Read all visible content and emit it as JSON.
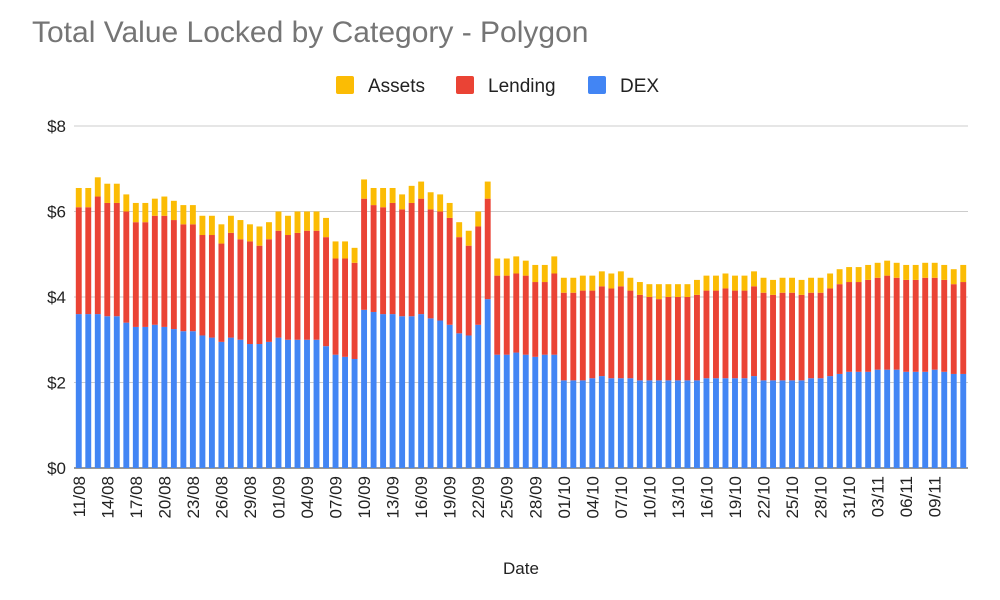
{
  "chart_data": {
    "type": "bar",
    "stacked": true,
    "title": "Total Value Locked by Category - Polygon",
    "xlabel": "Date",
    "ylabel": "",
    "ylim": [
      0,
      8
    ],
    "yticks": [
      "$0",
      "$2",
      "$4",
      "$6",
      "$8"
    ],
    "grid": true,
    "legend_position": "top",
    "categories": [
      "11/08",
      "12/08",
      "13/08",
      "14/08",
      "15/08",
      "16/08",
      "17/08",
      "18/08",
      "19/08",
      "20/08",
      "21/08",
      "22/08",
      "23/08",
      "24/08",
      "25/08",
      "26/08",
      "27/08",
      "28/08",
      "29/08",
      "30/08",
      "31/08",
      "01/09",
      "02/09",
      "03/09",
      "04/09",
      "05/09",
      "06/09",
      "07/09",
      "08/09",
      "09/09",
      "10/09",
      "11/09",
      "12/09",
      "13/09",
      "14/09",
      "15/09",
      "16/09",
      "17/09",
      "18/09",
      "19/09",
      "20/09",
      "21/09",
      "22/09",
      "23/09",
      "24/09",
      "25/09",
      "26/09",
      "27/09",
      "28/09",
      "29/09",
      "30/09",
      "01/10",
      "02/10",
      "03/10",
      "04/10",
      "05/10",
      "06/10",
      "07/10",
      "08/10",
      "09/10",
      "10/10",
      "11/10",
      "12/10",
      "13/10",
      "14/10",
      "15/10",
      "16/10",
      "17/10",
      "18/10",
      "19/10",
      "20/10",
      "21/10",
      "22/10",
      "23/10",
      "24/10",
      "25/10",
      "26/10",
      "27/10",
      "28/10",
      "29/10",
      "30/10",
      "31/10",
      "01/11",
      "02/11",
      "03/11",
      "04/11",
      "05/11",
      "06/11",
      "07/11",
      "08/11",
      "09/11",
      "10/11",
      "11/11",
      "12/11"
    ],
    "xtick_labels": [
      "11/08",
      "14/08",
      "17/08",
      "20/08",
      "23/08",
      "26/08",
      "29/08",
      "01/09",
      "04/09",
      "07/09",
      "10/09",
      "13/09",
      "16/09",
      "19/09",
      "22/09",
      "25/09",
      "28/09",
      "01/10",
      "04/10",
      "07/10",
      "10/10",
      "13/10",
      "16/10",
      "19/10",
      "22/10",
      "25/10",
      "28/10",
      "31/10",
      "03/11",
      "06/11",
      "09/11"
    ],
    "series": [
      {
        "name": "DEX",
        "color": "#4285f4",
        "values": [
          3.6,
          3.6,
          3.6,
          3.55,
          3.55,
          3.4,
          3.3,
          3.3,
          3.35,
          3.3,
          3.25,
          3.2,
          3.2,
          3.1,
          3.05,
          2.95,
          3.05,
          3.0,
          2.9,
          2.9,
          2.95,
          3.05,
          3.0,
          3.0,
          3.0,
          3.0,
          2.85,
          2.65,
          2.6,
          2.55,
          3.7,
          3.65,
          3.6,
          3.6,
          3.55,
          3.55,
          3.6,
          3.5,
          3.45,
          3.35,
          3.15,
          3.1,
          3.35,
          3.95,
          2.65,
          2.65,
          2.7,
          2.65,
          2.6,
          2.65,
          2.65,
          2.05,
          2.05,
          2.05,
          2.1,
          2.15,
          2.1,
          2.1,
          2.1,
          2.05,
          2.05,
          2.05,
          2.05,
          2.05,
          2.05,
          2.05,
          2.1,
          2.1,
          2.1,
          2.1,
          2.1,
          2.15,
          2.05,
          2.05,
          2.05,
          2.05,
          2.05,
          2.1,
          2.1,
          2.15,
          2.2,
          2.25,
          2.25,
          2.25,
          2.3,
          2.3,
          2.3,
          2.25,
          2.25,
          2.25,
          2.3,
          2.25,
          2.2,
          2.2
        ]
      },
      {
        "name": "Lending",
        "color": "#ea4335",
        "values": [
          2.5,
          2.5,
          2.75,
          2.65,
          2.65,
          2.6,
          2.45,
          2.45,
          2.55,
          2.6,
          2.55,
          2.5,
          2.5,
          2.35,
          2.4,
          2.3,
          2.45,
          2.35,
          2.4,
          2.3,
          2.4,
          2.5,
          2.45,
          2.5,
          2.55,
          2.55,
          2.55,
          2.25,
          2.3,
          2.25,
          2.6,
          2.5,
          2.5,
          2.6,
          2.5,
          2.65,
          2.7,
          2.55,
          2.55,
          2.5,
          2.25,
          2.1,
          2.3,
          2.35,
          1.85,
          1.85,
          1.85,
          1.85,
          1.75,
          1.7,
          1.9,
          2.05,
          2.05,
          2.1,
          2.05,
          2.1,
          2.1,
          2.15,
          2.05,
          2.0,
          1.95,
          1.9,
          1.95,
          1.95,
          1.95,
          2.0,
          2.05,
          2.05,
          2.1,
          2.05,
          2.05,
          2.1,
          2.05,
          2.0,
          2.05,
          2.05,
          2.0,
          2.0,
          2.0,
          2.05,
          2.1,
          2.1,
          2.1,
          2.15,
          2.15,
          2.2,
          2.15,
          2.15,
          2.15,
          2.2,
          2.15,
          2.15,
          2.1,
          2.15
        ]
      },
      {
        "name": "Assets",
        "color": "#fbbc04",
        "values": [
          0.45,
          0.45,
          0.45,
          0.45,
          0.45,
          0.4,
          0.45,
          0.45,
          0.4,
          0.45,
          0.45,
          0.45,
          0.45,
          0.45,
          0.45,
          0.45,
          0.4,
          0.45,
          0.4,
          0.45,
          0.4,
          0.45,
          0.45,
          0.5,
          0.45,
          0.45,
          0.45,
          0.4,
          0.4,
          0.35,
          0.45,
          0.4,
          0.45,
          0.35,
          0.35,
          0.4,
          0.4,
          0.4,
          0.4,
          0.35,
          0.35,
          0.35,
          0.35,
          0.4,
          0.4,
          0.4,
          0.4,
          0.35,
          0.4,
          0.4,
          0.4,
          0.35,
          0.35,
          0.35,
          0.35,
          0.35,
          0.35,
          0.35,
          0.3,
          0.3,
          0.3,
          0.35,
          0.3,
          0.3,
          0.3,
          0.35,
          0.35,
          0.35,
          0.35,
          0.35,
          0.35,
          0.35,
          0.35,
          0.35,
          0.35,
          0.35,
          0.35,
          0.35,
          0.35,
          0.35,
          0.35,
          0.35,
          0.35,
          0.35,
          0.35,
          0.35,
          0.35,
          0.35,
          0.35,
          0.35,
          0.35,
          0.35,
          0.35,
          0.4
        ]
      }
    ]
  }
}
